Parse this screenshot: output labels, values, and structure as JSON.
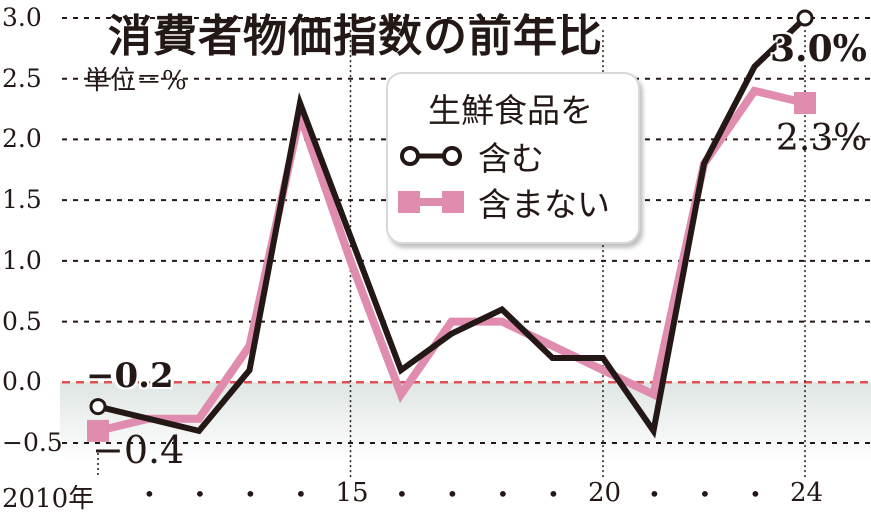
{
  "chart_data": {
    "type": "line",
    "title": "消費者物価指数の前年比",
    "unit_label": "単位＝%",
    "x": [
      2010,
      2011,
      2012,
      2013,
      2014,
      2015,
      2016,
      2017,
      2018,
      2019,
      2020,
      2021,
      2022,
      2023,
      2024
    ],
    "x_tick_labels": [
      {
        "year": 2010,
        "label": "2010年"
      },
      {
        "year": 2015,
        "label": "15"
      },
      {
        "year": 2020,
        "label": "20"
      },
      {
        "year": 2024,
        "label": "24"
      }
    ],
    "minor_tick_mark": "•",
    "ylim": [
      -0.5,
      3.0
    ],
    "y_ticks": [
      "3.0",
      "2.5",
      "2.0",
      "1.5",
      "1.0",
      "0.5",
      "0.0",
      "-0.5"
    ],
    "grid": true,
    "legend": {
      "title": "生鮮食品を",
      "placement": "top-center"
    },
    "series": [
      {
        "name": "含む",
        "color": "#231815",
        "marker": "open-circle",
        "values": [
          -0.2,
          -0.3,
          -0.4,
          0.1,
          2.3,
          1.2,
          0.1,
          0.4,
          0.6,
          0.2,
          0.2,
          -0.4,
          1.8,
          2.6,
          3.0
        ]
      },
      {
        "name": "含まない",
        "color": "#e08cae",
        "marker": "square",
        "values": [
          -0.4,
          -0.3,
          -0.3,
          0.3,
          2.2,
          1.0,
          -0.1,
          0.5,
          0.5,
          0.3,
          0.1,
          -0.1,
          1.8,
          2.4,
          2.3
        ]
      }
    ],
    "annotations": {
      "incl_start": "−0.2",
      "excl_start": "−0.4",
      "incl_end": "3.0%",
      "excl_end": "2.3%"
    },
    "zero_line_color": "#e05050"
  }
}
